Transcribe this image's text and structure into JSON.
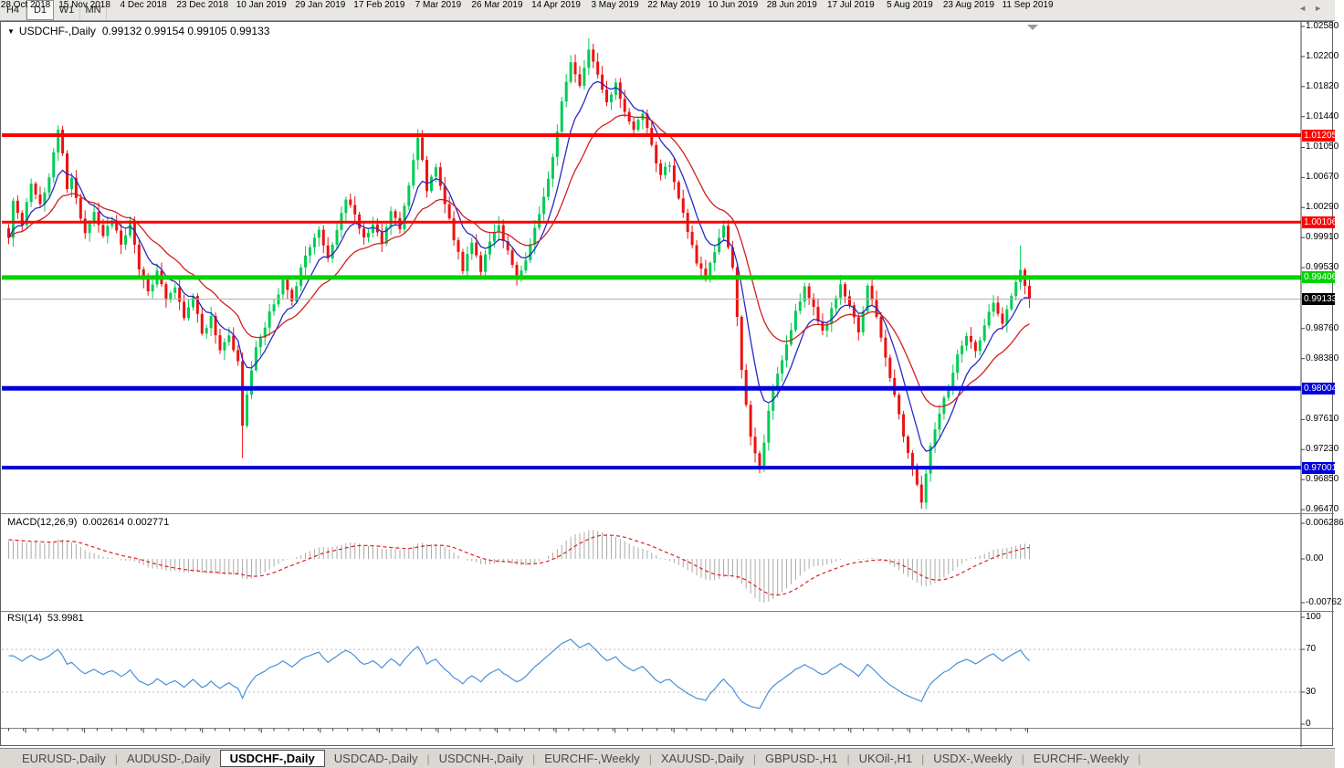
{
  "toolbar": {
    "timeframe_buttons": [
      {
        "label": "H4",
        "active": false
      },
      {
        "label": "D1",
        "active": true
      },
      {
        "label": "W1",
        "active": false
      },
      {
        "label": "MN",
        "active": false
      }
    ]
  },
  "chart": {
    "symbol_title": "USDCHF-,Daily",
    "ohlc_readout": "0.99132 0.99154 0.99105 0.99133",
    "dropdown_icon": "▼"
  },
  "price_axis": {
    "ticks": [
      "1.02580",
      "1.02200",
      "1.01820",
      "1.01440",
      "1.01050",
      "1.00670",
      "1.00290",
      "0.99910",
      "0.99530",
      "0.98760",
      "0.98380",
      "0.97610",
      "0.97230",
      "0.96850",
      "0.96470"
    ],
    "badges": [
      {
        "label": "1.01205",
        "value": 1.01205,
        "bg": "#ff0000",
        "fg": "#ffffff"
      },
      {
        "label": "1.00106",
        "value": 1.00106,
        "bg": "#ff0000",
        "fg": "#ffffff"
      },
      {
        "label": "0.99406",
        "value": 0.99406,
        "bg": "#00d300",
        "fg": "#ffffff"
      },
      {
        "label": "0.99133",
        "value": 0.99133,
        "bg": "#000000",
        "fg": "#ffffff"
      },
      {
        "label": "0.98004",
        "value": 0.98004,
        "bg": "#0000dd",
        "fg": "#ffffff"
      },
      {
        "label": "0.97001",
        "value": 0.97001,
        "bg": "#0000dd",
        "fg": "#ffffff"
      }
    ]
  },
  "hlines": [
    {
      "value": 1.01205,
      "color": "#ff0000",
      "width": 4
    },
    {
      "value": 1.00106,
      "color": "#ff0000",
      "width": 3
    },
    {
      "value": 0.99406,
      "color": "#00d300",
      "width": 5
    },
    {
      "value": 0.98004,
      "color": "#0000dd",
      "width": 5
    },
    {
      "value": 0.97001,
      "color": "#0000dd",
      "width": 4
    }
  ],
  "current_price": {
    "value": 0.99133,
    "label": "0.99133",
    "line_color": "#b0b0b0"
  },
  "colors": {
    "bull": "#00cc55",
    "bear": "#ee1111",
    "ma_fast": "#2929c8",
    "ma_slow": "#d02020",
    "macd_hist": "#a8a8a8",
    "macd_signal": "#e02020",
    "rsi": "#4a90d9",
    "rsi_levels": "#bbbbbb"
  },
  "chart_data": {
    "type": "candlestick",
    "symbol": "USDCHF",
    "timeframe": "Daily",
    "visible_range": {
      "price_top": 1.0258,
      "price_bottom": 0.9647,
      "date_start": "28 Oct 2018",
      "date_end": "20 Sep 2019"
    },
    "num_candles": 228,
    "close_anchors": [
      [
        0,
        0.999
      ],
      [
        1,
        1.004
      ],
      [
        3,
        1.0005
      ],
      [
        5,
        1.006
      ],
      [
        7,
        1.003
      ],
      [
        9,
        1.007
      ],
      [
        11,
        1.0128
      ],
      [
        12,
        1.0095
      ],
      [
        13,
        1.0055
      ],
      [
        14,
        1.0065
      ],
      [
        15,
        1.004
      ],
      [
        17,
        0.9995
      ],
      [
        19,
        1.0025
      ],
      [
        21,
        0.999
      ],
      [
        23,
        1.0015
      ],
      [
        25,
        0.998
      ],
      [
        27,
        1.001
      ],
      [
        29,
        0.995
      ],
      [
        31,
        0.992
      ],
      [
        33,
        0.995
      ],
      [
        35,
        0.991
      ],
      [
        37,
        0.993
      ],
      [
        39,
        0.989
      ],
      [
        41,
        0.9915
      ],
      [
        43,
        0.987
      ],
      [
        45,
        0.989
      ],
      [
        47,
        0.985
      ],
      [
        49,
        0.987
      ],
      [
        51,
        0.9833
      ],
      [
        52,
        0.975
      ],
      [
        53,
        0.979
      ],
      [
        55,
        0.985
      ],
      [
        57,
        0.988
      ],
      [
        59,
        0.991
      ],
      [
        61,
        0.9935
      ],
      [
        63,
        0.991
      ],
      [
        65,
        0.995
      ],
      [
        67,
        0.998
      ],
      [
        69,
        1.0
      ],
      [
        71,
        0.9965
      ],
      [
        73,
        1.0
      ],
      [
        75,
        1.004
      ],
      [
        77,
        1.002
      ],
      [
        79,
        0.999
      ],
      [
        81,
        1.001
      ],
      [
        83,
        0.9985
      ],
      [
        85,
        1.0025
      ],
      [
        87,
        1.0
      ],
      [
        89,
        1.006
      ],
      [
        91,
        1.0115
      ],
      [
        92,
        1.009
      ],
      [
        93,
        1.005
      ],
      [
        95,
        1.008
      ],
      [
        97,
        1.0035
      ],
      [
        99,
        0.999
      ],
      [
        101,
        0.995
      ],
      [
        103,
        0.9985
      ],
      [
        105,
        0.995
      ],
      [
        107,
        0.9985
      ],
      [
        109,
        1.0005
      ],
      [
        111,
        0.9975
      ],
      [
        113,
        0.994
      ],
      [
        115,
        0.9965
      ],
      [
        117,
        1.0
      ],
      [
        119,
        1.004
      ],
      [
        121,
        1.0095
      ],
      [
        123,
        1.016
      ],
      [
        125,
        1.0215
      ],
      [
        127,
        1.0185
      ],
      [
        129,
        1.023
      ],
      [
        131,
        1.0195
      ],
      [
        133,
        1.016
      ],
      [
        135,
        1.019
      ],
      [
        137,
        1.015
      ],
      [
        139,
        1.0125
      ],
      [
        141,
        1.015
      ],
      [
        143,
        1.0105
      ],
      [
        145,
        1.007
      ],
      [
        147,
        1.0085
      ],
      [
        149,
        1.004
      ],
      [
        151,
        1.0
      ],
      [
        153,
        0.996
      ],
      [
        155,
        0.994
      ],
      [
        157,
        0.9975
      ],
      [
        159,
        1.0005
      ],
      [
        161,
        0.995
      ],
      [
        163,
        0.9825
      ],
      [
        165,
        0.974
      ],
      [
        167,
        0.97
      ],
      [
        169,
        0.977
      ],
      [
        171,
        0.982
      ],
      [
        173,
        0.9855
      ],
      [
        175,
        0.9895
      ],
      [
        177,
        0.993
      ],
      [
        179,
        0.99
      ],
      [
        181,
        0.987
      ],
      [
        183,
        0.99
      ],
      [
        185,
        0.9935
      ],
      [
        187,
        0.9905
      ],
      [
        189,
        0.987
      ],
      [
        191,
        0.993
      ],
      [
        193,
        0.989
      ],
      [
        195,
        0.984
      ],
      [
        197,
        0.979
      ],
      [
        199,
        0.974
      ],
      [
        201,
        0.97
      ],
      [
        203,
        0.9659
      ],
      [
        205,
        0.973
      ],
      [
        207,
        0.977
      ],
      [
        209,
        0.98
      ],
      [
        211,
        0.984
      ],
      [
        213,
        0.987
      ],
      [
        215,
        0.9845
      ],
      [
        217,
        0.988
      ],
      [
        219,
        0.991
      ],
      [
        221,
        0.9885
      ],
      [
        223,
        0.992
      ],
      [
        225,
        0.995
      ],
      [
        226,
        0.993
      ],
      [
        227,
        0.99133
      ]
    ],
    "high_overrides": {
      "11": 1.0133,
      "129": 1.0243,
      "225": 0.9981
    },
    "low_overrides": {
      "52": 0.9712,
      "167": 0.9693,
      "203": 0.9648
    },
    "last_ohlc": {
      "open": 0.99132,
      "high": 0.99154,
      "low": 0.99105,
      "close": 0.99133
    },
    "moving_averages": [
      {
        "period": 8
      },
      {
        "period": 20
      }
    ]
  },
  "macd_panel": {
    "label": "MACD(12,26,9)",
    "values": "0.002614 0.002771",
    "axis_ticks": [
      "0.006286",
      "0.00",
      "-0.00762"
    ],
    "params": {
      "fast": 12,
      "slow": 26,
      "signal": 9
    }
  },
  "rsi_panel": {
    "label": "RSI(14)",
    "value": "53.9981",
    "axis_ticks": [
      100,
      70,
      30,
      0
    ],
    "levels": [
      70,
      30
    ],
    "period": 14
  },
  "date_axis": {
    "labels": [
      "28 Oct 2018",
      "15 Nov 2018",
      "4 Dec 2018",
      "23 Dec 2018",
      "10 Jan 2019",
      "29 Jan 2019",
      "17 Feb 2019",
      "7 Mar 2019",
      "26 Mar 2019",
      "14 Apr 2019",
      "3 May 2019",
      "22 May 2019",
      "10 Jun 2019",
      "28 Jun 2019",
      "17 Jul 2019",
      "5 Aug 2019",
      "23 Aug 2019",
      "11 Sep 2019"
    ]
  },
  "tabs": {
    "separator": "|",
    "active_index": 2,
    "items": [
      {
        "label": "EURUSD-,Daily"
      },
      {
        "label": "AUDUSD-,Daily"
      },
      {
        "label": "USDCHF-,Daily"
      },
      {
        "label": "USDCAD-,Daily"
      },
      {
        "label": "USDCNH-,Daily"
      },
      {
        "label": "EURCHF-,Weekly"
      },
      {
        "label": "XAUUSD-,Daily"
      },
      {
        "label": "GBPUSD-,H1"
      },
      {
        "label": "UKOil-,H1"
      },
      {
        "label": "USDX-,Weekly"
      },
      {
        "label": "EURCHF-,Weekly"
      }
    ],
    "scroll_left_icon": "◄",
    "scroll_right_icon": "►"
  }
}
